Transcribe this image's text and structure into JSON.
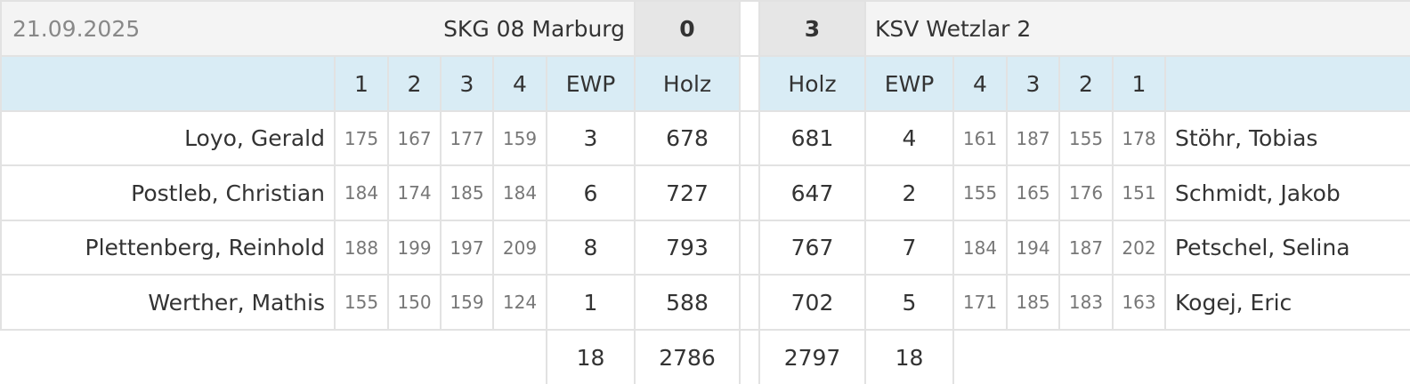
{
  "header": {
    "date": "21.09.2025",
    "home_team": "SKG 08 Marburg",
    "home_score": 0,
    "away_score": 3,
    "away_team": "KSV Wetzlar 2"
  },
  "columns": {
    "home": [
      "1",
      "2",
      "3",
      "4",
      "EWP",
      "Holz"
    ],
    "away": [
      "Holz",
      "EWP",
      "4",
      "3",
      "2",
      "1"
    ]
  },
  "rows": [
    {
      "home_player": "Loyo, Gerald",
      "home_sets": [
        175,
        167,
        177,
        159
      ],
      "home_ewp": 3,
      "home_holz": 678,
      "away_holz": 681,
      "away_ewp": 4,
      "away_sets": [
        161,
        187,
        155,
        178
      ],
      "away_player": "Stöhr, Tobias"
    },
    {
      "home_player": "Postleb, Christian",
      "home_sets": [
        184,
        174,
        185,
        184
      ],
      "home_ewp": 6,
      "home_holz": 727,
      "away_holz": 647,
      "away_ewp": 2,
      "away_sets": [
        155,
        165,
        176,
        151
      ],
      "away_player": "Schmidt, Jakob"
    },
    {
      "home_player": "Plettenberg, Reinhold",
      "home_sets": [
        188,
        199,
        197,
        209
      ],
      "home_ewp": 8,
      "home_holz": 793,
      "away_holz": 767,
      "away_ewp": 7,
      "away_sets": [
        184,
        194,
        187,
        202
      ],
      "away_player": "Petschel, Selina"
    },
    {
      "home_player": "Werther, Mathis",
      "home_sets": [
        155,
        150,
        159,
        124
      ],
      "home_ewp": 1,
      "home_holz": 588,
      "away_holz": 702,
      "away_ewp": 5,
      "away_sets": [
        171,
        185,
        183,
        163
      ],
      "away_player": "Kogej, Eric"
    }
  ],
  "totals": {
    "home_ewp": 18,
    "home_holz": 2786,
    "away_holz": 2797,
    "away_ewp": 18
  }
}
